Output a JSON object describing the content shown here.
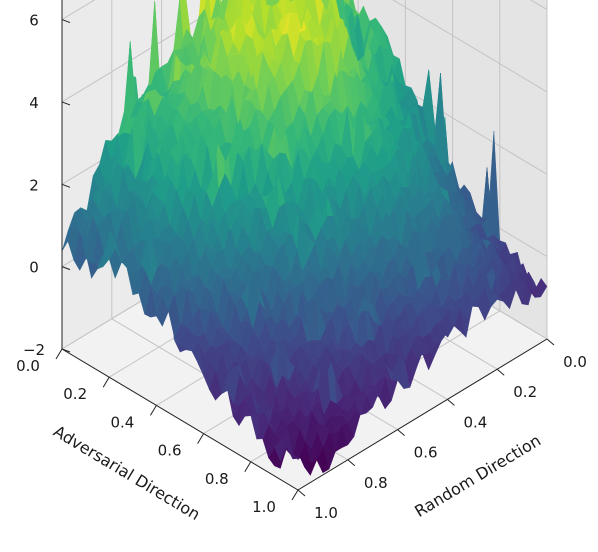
{
  "chart_data": {
    "type": "surface3d",
    "title": "",
    "colormap": "viridis",
    "xlabel": "Adversarial Direction",
    "ylabel": "Random Direction",
    "zlabel": "",
    "xlim": [
      0,
      1
    ],
    "ylim": [
      0,
      1
    ],
    "zlim": [
      -2,
      6.5
    ],
    "xticks": [
      "0.0",
      "0.2",
      "0.4",
      "0.6",
      "0.8",
      "1.0"
    ],
    "yticks": [
      "0.0",
      "0.2",
      "0.4",
      "0.6",
      "0.8",
      "1.0"
    ],
    "zticks": [
      "−2",
      "0",
      "2",
      "4",
      "6"
    ],
    "zticks_values": [
      -2,
      0,
      2,
      4,
      6
    ],
    "grid": true,
    "surface": {
      "x_samples": [
        0.0,
        0.1,
        0.2,
        0.3,
        0.4,
        0.5,
        0.6,
        0.7,
        0.8,
        0.9,
        1.0
      ],
      "y_samples": [
        0.0,
        0.1,
        0.2,
        0.3,
        0.4,
        0.5,
        0.6,
        0.7,
        0.8,
        0.9,
        1.0
      ],
      "z_grid": [
        [
          4.4,
          4.8,
          4.2,
          4.6,
          4.0,
          3.6,
          3.2,
          3.0,
          2.4,
          1.4,
          0.6
        ],
        [
          3.6,
          4.6,
          4.0,
          4.8,
          5.0,
          3.8,
          3.4,
          3.4,
          2.0,
          1.6,
          0.4
        ],
        [
          2.4,
          4.2,
          4.6,
          5.2,
          4.4,
          5.6,
          4.0,
          3.0,
          2.6,
          1.2,
          0.8
        ],
        [
          3.0,
          3.8,
          5.0,
          4.4,
          5.4,
          4.6,
          3.6,
          3.2,
          2.2,
          1.6,
          0.5
        ],
        [
          2.2,
          2.8,
          4.0,
          4.8,
          4.6,
          4.2,
          3.4,
          2.6,
          1.8,
          0.8,
          0.0
        ],
        [
          1.4,
          2.4,
          2.8,
          3.4,
          3.8,
          3.0,
          2.6,
          2.0,
          1.2,
          0.4,
          -0.4
        ],
        [
          0.6,
          1.6,
          2.2,
          2.6,
          2.4,
          2.0,
          1.8,
          1.0,
          0.4,
          -0.2,
          -0.6
        ],
        [
          0.2,
          0.8,
          1.4,
          1.6,
          1.4,
          1.2,
          0.8,
          0.4,
          -0.2,
          -0.6,
          -0.8
        ],
        [
          -0.2,
          0.2,
          0.8,
          0.8,
          0.6,
          0.4,
          0.2,
          -0.4,
          -0.6,
          -1.0,
          -1.2
        ],
        [
          -0.6,
          -0.2,
          0.2,
          0.2,
          0.0,
          -0.2,
          -0.4,
          -0.8,
          -1.0,
          -1.4,
          -1.6
        ],
        [
          -0.8,
          -0.6,
          -0.2,
          -0.4,
          -0.6,
          -0.8,
          -1.0,
          -1.2,
          -1.4,
          -1.8,
          -1.4
        ]
      ]
    }
  }
}
